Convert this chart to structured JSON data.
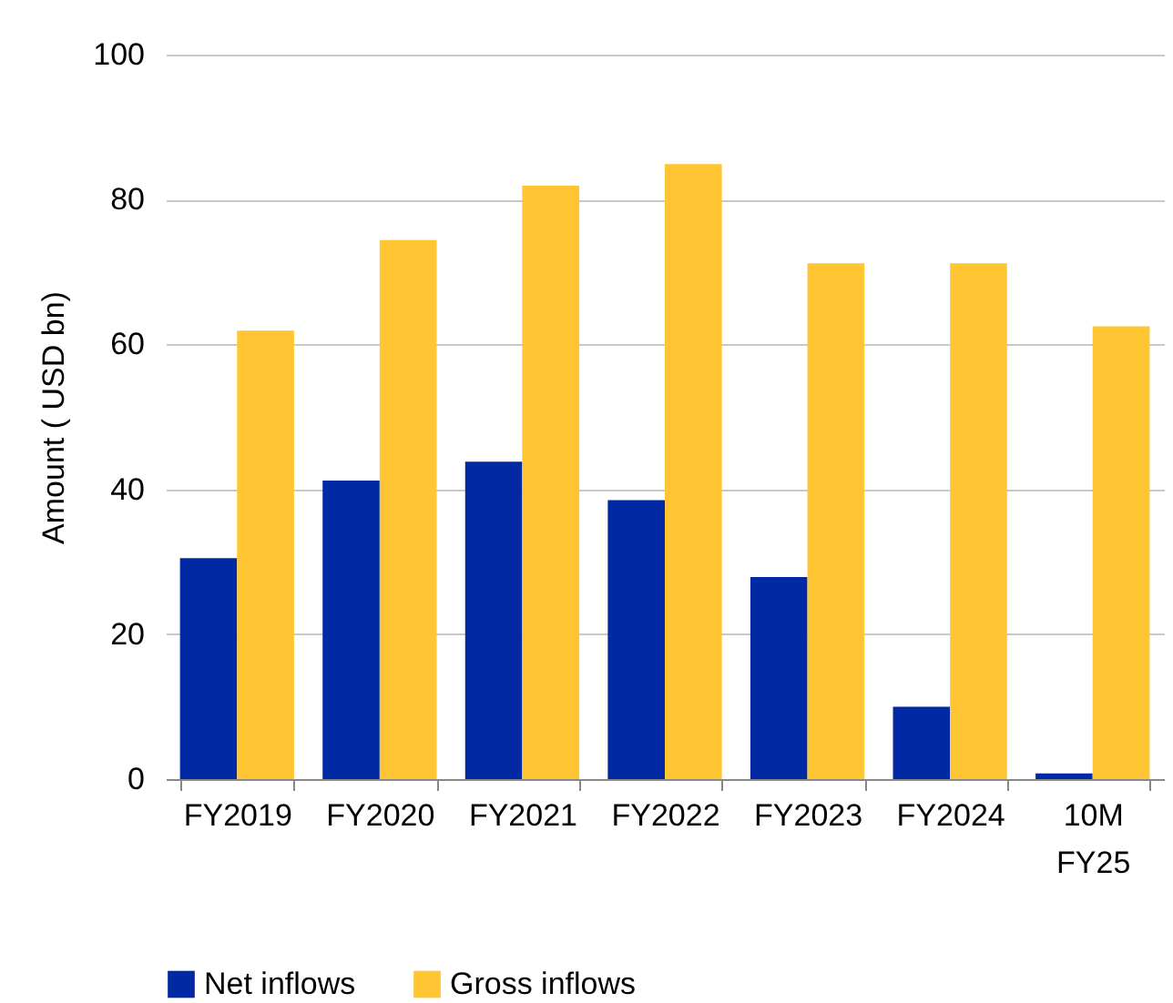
{
  "chart_data": {
    "type": "bar",
    "ylabel": "Amount ( USD bn)",
    "categories": [
      "FY2019",
      "FY2020",
      "FY2021",
      "FY2022",
      "FY2023",
      "FY2024",
      "10M FY25"
    ],
    "series": [
      {
        "name": "Net inflows",
        "color": "#0029a3",
        "values": [
          30.5,
          41.2,
          43.8,
          38.5,
          27.9,
          10.0,
          0.8
        ]
      },
      {
        "name": "Gross inflows",
        "color": "#ffc533",
        "values": [
          61.9,
          74.4,
          81.9,
          84.9,
          71.2,
          71.2,
          62.5
        ]
      }
    ],
    "ylim": [
      0,
      100
    ],
    "yticks": [
      0,
      20,
      40,
      60,
      80,
      100
    ],
    "grid": "y",
    "legend": "bottom"
  }
}
